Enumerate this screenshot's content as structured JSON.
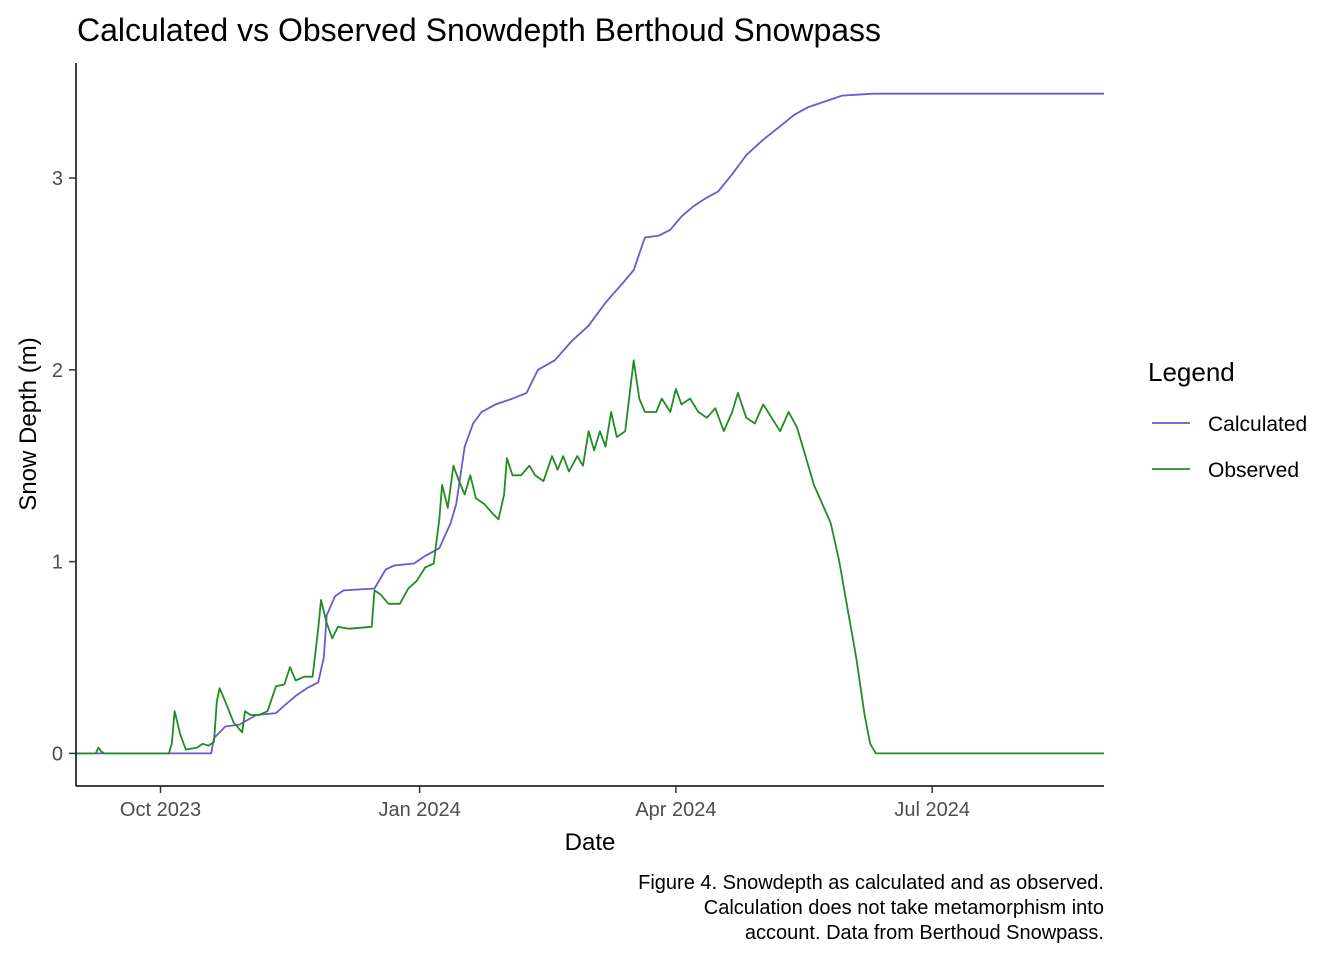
{
  "chart_data": {
    "type": "line",
    "title": "Calculated vs Observed Snowdepth Berthoud Snowpass",
    "xlabel": "Date",
    "ylabel": "Snow Depth (m)",
    "xlim": [
      "2023-09-01",
      "2024-08-31"
    ],
    "ylim": [
      -0.17,
      3.6
    ],
    "x_ticks": [
      {
        "date": "2023-10-01",
        "label": "Oct 2023"
      },
      {
        "date": "2024-01-01",
        "label": "Jan 2024"
      },
      {
        "date": "2024-04-01",
        "label": "Apr 2024"
      },
      {
        "date": "2024-07-01",
        "label": "Jul 2024"
      }
    ],
    "y_ticks": [
      {
        "value": 0,
        "label": "0"
      },
      {
        "value": 1,
        "label": "1"
      },
      {
        "value": 2,
        "label": "2"
      },
      {
        "value": 3,
        "label": "3"
      }
    ],
    "grid": false,
    "legend": {
      "title": "Legend",
      "position": "right"
    },
    "series": [
      {
        "name": "Calculated",
        "color": "#6a5acd",
        "points": [
          [
            "2023-09-01",
            0
          ],
          [
            "2023-10-01",
            0
          ],
          [
            "2023-10-15",
            0
          ],
          [
            "2023-10-19",
            0
          ],
          [
            "2023-10-20",
            0.08
          ],
          [
            "2023-10-24",
            0.14
          ],
          [
            "2023-10-29",
            0.15
          ],
          [
            "2023-11-04",
            0.2
          ],
          [
            "2023-11-11",
            0.21
          ],
          [
            "2023-11-14",
            0.25
          ],
          [
            "2023-11-18",
            0.3
          ],
          [
            "2023-11-22",
            0.34
          ],
          [
            "2023-11-26",
            0.37
          ],
          [
            "2023-11-28",
            0.5
          ],
          [
            "2023-11-29",
            0.72
          ],
          [
            "2023-12-02",
            0.82
          ],
          [
            "2023-12-05",
            0.85
          ],
          [
            "2023-12-16",
            0.86
          ],
          [
            "2023-12-20",
            0.96
          ],
          [
            "2023-12-23",
            0.98
          ],
          [
            "2023-12-30",
            0.99
          ],
          [
            "2024-01-03",
            1.03
          ],
          [
            "2024-01-08",
            1.07
          ],
          [
            "2024-01-12",
            1.2
          ],
          [
            "2024-01-14",
            1.3
          ],
          [
            "2024-01-17",
            1.6
          ],
          [
            "2024-01-20",
            1.72
          ],
          [
            "2024-01-23",
            1.78
          ],
          [
            "2024-01-28",
            1.82
          ],
          [
            "2024-02-03",
            1.85
          ],
          [
            "2024-02-08",
            1.88
          ],
          [
            "2024-02-12",
            2.0
          ],
          [
            "2024-02-18",
            2.05
          ],
          [
            "2024-02-24",
            2.15
          ],
          [
            "2024-03-01",
            2.23
          ],
          [
            "2024-03-07",
            2.35
          ],
          [
            "2024-03-13",
            2.45
          ],
          [
            "2024-03-17",
            2.52
          ],
          [
            "2024-03-21",
            2.69
          ],
          [
            "2024-03-26",
            2.7
          ],
          [
            "2024-03-30",
            2.73
          ],
          [
            "2024-04-03",
            2.8
          ],
          [
            "2024-04-07",
            2.85
          ],
          [
            "2024-04-11",
            2.89
          ],
          [
            "2024-04-16",
            2.93
          ],
          [
            "2024-04-21",
            3.02
          ],
          [
            "2024-04-26",
            3.12
          ],
          [
            "2024-05-02",
            3.2
          ],
          [
            "2024-05-08",
            3.27
          ],
          [
            "2024-05-13",
            3.33
          ],
          [
            "2024-05-18",
            3.37
          ],
          [
            "2024-05-24",
            3.4
          ],
          [
            "2024-05-30",
            3.43
          ],
          [
            "2024-06-10",
            3.44
          ],
          [
            "2024-07-01",
            3.44
          ],
          [
            "2024-08-31",
            3.44
          ]
        ]
      },
      {
        "name": "Observed",
        "color": "#228b22",
        "points": [
          [
            "2023-09-01",
            0
          ],
          [
            "2023-09-08",
            0
          ],
          [
            "2023-09-09",
            0.03
          ],
          [
            "2023-09-10",
            0.01
          ],
          [
            "2023-09-11",
            0
          ],
          [
            "2023-10-04",
            0
          ],
          [
            "2023-10-05",
            0.05
          ],
          [
            "2023-10-06",
            0.22
          ],
          [
            "2023-10-08",
            0.1
          ],
          [
            "2023-10-10",
            0.02
          ],
          [
            "2023-10-14",
            0.03
          ],
          [
            "2023-10-16",
            0.05
          ],
          [
            "2023-10-18",
            0.04
          ],
          [
            "2023-10-20",
            0.06
          ],
          [
            "2023-10-21",
            0.27
          ],
          [
            "2023-10-22",
            0.34
          ],
          [
            "2023-10-24",
            0.27
          ],
          [
            "2023-10-27",
            0.16
          ],
          [
            "2023-10-30",
            0.11
          ],
          [
            "2023-10-31",
            0.22
          ],
          [
            "2023-11-02",
            0.2
          ],
          [
            "2023-11-05",
            0.2
          ],
          [
            "2023-11-08",
            0.22
          ],
          [
            "2023-11-11",
            0.35
          ],
          [
            "2023-11-14",
            0.36
          ],
          [
            "2023-11-16",
            0.45
          ],
          [
            "2023-11-18",
            0.38
          ],
          [
            "2023-11-21",
            0.4
          ],
          [
            "2023-11-24",
            0.4
          ],
          [
            "2023-11-26",
            0.65
          ],
          [
            "2023-11-27",
            0.8
          ],
          [
            "2023-11-29",
            0.68
          ],
          [
            "2023-12-01",
            0.6
          ],
          [
            "2023-12-03",
            0.66
          ],
          [
            "2023-12-07",
            0.65
          ],
          [
            "2023-12-15",
            0.66
          ],
          [
            "2023-12-16",
            0.85
          ],
          [
            "2023-12-18",
            0.83
          ],
          [
            "2023-12-21",
            0.78
          ],
          [
            "2023-12-25",
            0.78
          ],
          [
            "2023-12-28",
            0.86
          ],
          [
            "2023-12-31",
            0.9
          ],
          [
            "2024-01-03",
            0.97
          ],
          [
            "2024-01-06",
            0.99
          ],
          [
            "2024-01-08",
            1.22
          ],
          [
            "2024-01-09",
            1.4
          ],
          [
            "2024-01-11",
            1.28
          ],
          [
            "2024-01-13",
            1.5
          ],
          [
            "2024-01-15",
            1.42
          ],
          [
            "2024-01-17",
            1.35
          ],
          [
            "2024-01-19",
            1.45
          ],
          [
            "2024-01-21",
            1.33
          ],
          [
            "2024-01-24",
            1.3
          ],
          [
            "2024-01-27",
            1.25
          ],
          [
            "2024-01-29",
            1.22
          ],
          [
            "2024-01-31",
            1.35
          ],
          [
            "2024-02-01",
            1.54
          ],
          [
            "2024-02-03",
            1.45
          ],
          [
            "2024-02-06",
            1.45
          ],
          [
            "2024-02-09",
            1.5
          ],
          [
            "2024-02-11",
            1.45
          ],
          [
            "2024-02-14",
            1.42
          ],
          [
            "2024-02-17",
            1.55
          ],
          [
            "2024-02-19",
            1.48
          ],
          [
            "2024-02-21",
            1.55
          ],
          [
            "2024-02-23",
            1.47
          ],
          [
            "2024-02-26",
            1.55
          ],
          [
            "2024-02-28",
            1.5
          ],
          [
            "2024-03-01",
            1.68
          ],
          [
            "2024-03-03",
            1.58
          ],
          [
            "2024-03-05",
            1.68
          ],
          [
            "2024-03-07",
            1.6
          ],
          [
            "2024-03-09",
            1.78
          ],
          [
            "2024-03-11",
            1.65
          ],
          [
            "2024-03-14",
            1.68
          ],
          [
            "2024-03-17",
            2.05
          ],
          [
            "2024-03-19",
            1.85
          ],
          [
            "2024-03-21",
            1.78
          ],
          [
            "2024-03-25",
            1.78
          ],
          [
            "2024-03-27",
            1.85
          ],
          [
            "2024-03-30",
            1.78
          ],
          [
            "2024-04-01",
            1.9
          ],
          [
            "2024-04-03",
            1.82
          ],
          [
            "2024-04-06",
            1.85
          ],
          [
            "2024-04-09",
            1.78
          ],
          [
            "2024-04-12",
            1.75
          ],
          [
            "2024-04-15",
            1.8
          ],
          [
            "2024-04-18",
            1.68
          ],
          [
            "2024-04-21",
            1.78
          ],
          [
            "2024-04-23",
            1.88
          ],
          [
            "2024-04-26",
            1.75
          ],
          [
            "2024-04-29",
            1.72
          ],
          [
            "2024-05-02",
            1.82
          ],
          [
            "2024-05-05",
            1.75
          ],
          [
            "2024-05-08",
            1.68
          ],
          [
            "2024-05-11",
            1.78
          ],
          [
            "2024-05-14",
            1.7
          ],
          [
            "2024-05-17",
            1.55
          ],
          [
            "2024-05-20",
            1.4
          ],
          [
            "2024-05-23",
            1.3
          ],
          [
            "2024-05-26",
            1.2
          ],
          [
            "2024-05-29",
            1.0
          ],
          [
            "2024-06-01",
            0.75
          ],
          [
            "2024-06-04",
            0.5
          ],
          [
            "2024-06-07",
            0.2
          ],
          [
            "2024-06-09",
            0.05
          ],
          [
            "2024-06-11",
            0
          ],
          [
            "2024-07-01",
            0
          ],
          [
            "2024-08-31",
            0
          ]
        ]
      }
    ]
  },
  "caption_lines": [
    "Figure 4. Snowdepth as calculated and as observed.",
    "Calculation does not take metamorphism into",
    "account. Data from Berthoud Snowpass."
  ]
}
